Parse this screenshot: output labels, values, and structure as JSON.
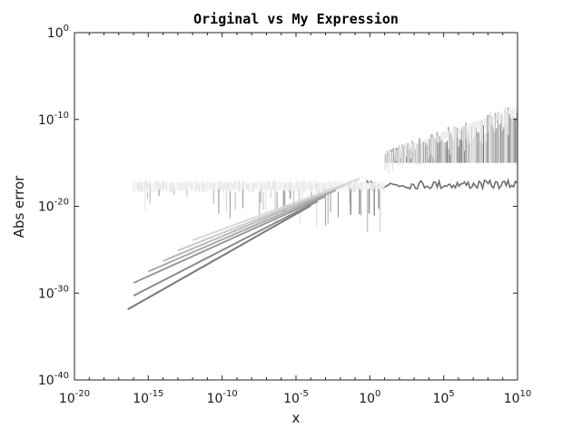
{
  "chart_data": {
    "type": "line",
    "title": "Original vs My Expression",
    "xlabel": "x",
    "ylabel": "Abs error",
    "x_scale": "log",
    "y_scale": "log",
    "xlim": [
      1e-20,
      10000000000.0
    ],
    "ylim": [
      1e-40,
      1
    ],
    "x_ticks": [
      {
        "base": "10",
        "exp": "-20",
        "value": 1e-20
      },
      {
        "base": "10",
        "exp": "-15",
        "value": 1e-15
      },
      {
        "base": "10",
        "exp": "-10",
        "value": 1e-10
      },
      {
        "base": "10",
        "exp": "-5",
        "value": 1e-05
      },
      {
        "base": "10",
        "exp": "0",
        "value": 1
      },
      {
        "base": "10",
        "exp": "5",
        "value": 100000.0
      },
      {
        "base": "10",
        "exp": "10",
        "value": 10000000000.0
      }
    ],
    "y_ticks": [
      {
        "base": "10",
        "exp": "-40",
        "value": 1e-40
      },
      {
        "base": "10",
        "exp": "-30",
        "value": 1e-30
      },
      {
        "base": "10",
        "exp": "-20",
        "value": 1e-20
      },
      {
        "base": "10",
        "exp": "-10",
        "value": 1e-10
      },
      {
        "base": "10",
        "exp": "0",
        "value": 1
      }
    ],
    "grid": false,
    "legend": "none",
    "noise_floor": [
      1e-17,
      1e-18
    ],
    "series": [
      {
        "color": "#7a7a7a",
        "points": [
          [
            4e-17,
            1.3e-32
          ],
          [
            0.0001,
            1.2e-20
          ]
        ]
      },
      {
        "color": "#8a8a8a",
        "points": [
          [
            1e-16,
            5e-31
          ],
          [
            0.0003,
            4e-20
          ]
        ]
      },
      {
        "color": "#999999",
        "points": [
          [
            1e-16,
            1.5e-29
          ],
          [
            0.001,
            1.4e-19
          ]
        ]
      },
      {
        "color": "#a8a8a8",
        "points": [
          [
            1e-15,
            3e-28
          ],
          [
            0.005,
            7e-19
          ]
        ]
      },
      {
        "color": "#b8b8b8",
        "points": [
          [
            1e-14,
            5e-27
          ],
          [
            0.02,
            3e-18
          ]
        ]
      },
      {
        "color": "#c8c8c8",
        "points": [
          [
            1e-13,
            8e-26
          ],
          [
            0.08,
            8e-18
          ]
        ]
      },
      {
        "color": "#d8d8d8",
        "points": [
          [
            1e-12,
            1.2e-24
          ],
          [
            0.2,
            1.5e-17
          ]
        ]
      }
    ],
    "spike_band": {
      "x_range": [
        10,
        10000000000.0
      ],
      "y_range": [
        1e-15,
        1e-08
      ],
      "color": "#808080"
    },
    "lower_band": {
      "x_range": [
        10,
        10000000000.0
      ],
      "y_range": [
        1e-18,
        1e-17
      ],
      "color": "#6e6e6e"
    }
  }
}
